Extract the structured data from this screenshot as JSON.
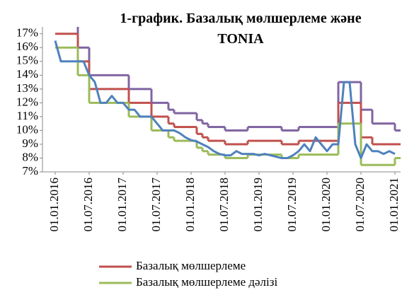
{
  "chart_data": {
    "type": "line",
    "title": "1-график. Базалық мөлшерлеме және TONIA",
    "x": [
      "01.01.2016",
      "01.02.2016",
      "01.03.2016",
      "01.04.2016",
      "01.05.2016",
      "01.06.2016",
      "01.07.2016",
      "01.08.2016",
      "01.09.2016",
      "01.10.2016",
      "01.11.2016",
      "01.12.2016",
      "01.01.2017",
      "01.02.2017",
      "01.03.2017",
      "01.04.2017",
      "01.05.2017",
      "01.06.2017",
      "01.07.2017",
      "01.08.2017",
      "01.09.2017",
      "01.10.2017",
      "01.11.2017",
      "01.12.2017",
      "01.01.2018",
      "01.02.2018",
      "01.03.2018",
      "01.04.2018",
      "01.05.2018",
      "01.06.2018",
      "01.07.2018",
      "01.08.2018",
      "01.09.2018",
      "01.10.2018",
      "01.11.2018",
      "01.12.2018",
      "01.01.2019",
      "01.02.2019",
      "01.03.2019",
      "01.04.2019",
      "01.05.2019",
      "01.06.2019",
      "01.07.2019",
      "01.08.2019",
      "01.09.2019",
      "01.10.2019",
      "01.11.2019",
      "01.12.2019",
      "01.01.2020",
      "01.02.2020",
      "01.03.2020",
      "01.04.2020",
      "01.05.2020",
      "01.06.2020",
      "01.07.2020",
      "01.08.2020",
      "01.09.2020",
      "01.10.2020",
      "01.11.2020",
      "01.12.2020",
      "01.01.2021"
    ],
    "series": [
      {
        "color": "#8064a2",
        "step": true,
        "values": [
          18,
          18,
          18,
          18,
          16,
          16,
          14,
          14,
          14,
          14,
          14,
          14,
          14,
          13,
          13,
          13,
          13,
          12,
          12,
          12,
          11.5,
          11.25,
          11.25,
          11.25,
          11.25,
          10.75,
          10.5,
          10.25,
          10.25,
          10.25,
          10,
          10,
          10,
          10,
          10.25,
          10.25,
          10.25,
          10.25,
          10.25,
          10.25,
          10,
          10,
          10,
          10.25,
          10.25,
          10.25,
          10.25,
          10.25,
          10.25,
          10.25,
          13.5,
          13.5,
          13.5,
          13.5,
          11.5,
          11.5,
          10.5,
          10.5,
          10.5,
          10.5,
          10
        ]
      },
      {
        "name": "Базалық мөлшерлеме",
        "color": "#c0504d",
        "step": true,
        "values": [
          17,
          17,
          17,
          17,
          15,
          15,
          13,
          13,
          13,
          13,
          13,
          13,
          13,
          12,
          12,
          12,
          12,
          11,
          11,
          11,
          10.5,
          10.25,
          10.25,
          10.25,
          10.25,
          9.75,
          9.5,
          9.25,
          9.25,
          9.25,
          9,
          9,
          9,
          9,
          9.25,
          9.25,
          9.25,
          9.25,
          9.25,
          9.25,
          9,
          9,
          9,
          9.25,
          9.25,
          9.25,
          9.25,
          9.25,
          9.25,
          9.25,
          12,
          12,
          12,
          12,
          9.5,
          9.5,
          9,
          9,
          9,
          9,
          9
        ]
      },
      {
        "name": "Базалық мөлшерлеме дәлізі",
        "color": "#9bbb59",
        "step": true,
        "values": [
          16,
          16,
          16,
          16,
          14,
          14,
          12,
          12,
          12,
          12,
          12,
          12,
          12,
          11,
          11,
          11,
          11,
          10,
          10,
          10,
          9.5,
          9.25,
          9.25,
          9.25,
          9.25,
          8.75,
          8.5,
          8.25,
          8.25,
          8.25,
          8,
          8,
          8,
          8,
          8.25,
          8.25,
          8.25,
          8.25,
          8.25,
          8.25,
          8,
          8,
          8,
          8.25,
          8.25,
          8.25,
          8.25,
          8.25,
          8.25,
          8.25,
          10.5,
          10.5,
          10.5,
          10.5,
          7.5,
          7.5,
          7.5,
          7.5,
          7.5,
          7.5,
          8
        ]
      },
      {
        "color": "#4f81bd",
        "step": false,
        "values": [
          16.5,
          15,
          15,
          15,
          15,
          15,
          14,
          13.5,
          12,
          12,
          12.5,
          12,
          12,
          11.5,
          11.5,
          11,
          11,
          11,
          10.5,
          10,
          10,
          10,
          9.8,
          9.5,
          9.3,
          9.2,
          9,
          8.8,
          8.5,
          8.3,
          8.2,
          8.2,
          8.5,
          8.3,
          8.3,
          8.3,
          8.2,
          8.3,
          8.2,
          8.1,
          8,
          8,
          8.2,
          8.5,
          9,
          8.5,
          9.5,
          9,
          8.5,
          9,
          9,
          13.5,
          13.5,
          9,
          8,
          9,
          8.5,
          8.5,
          8.3,
          8.5,
          8.3
        ]
      }
    ],
    "xlim": [
      "01.11.2015",
      "01.02.2021"
    ],
    "xticks": [
      "01.01.2016",
      "01.07.2016",
      "01.01.2017",
      "01.07.2017",
      "01.01.2018",
      "01.07.2018",
      "01.01.2019",
      "01.07.2019",
      "01.01.2020",
      "01.07.2020",
      "01.01.2021"
    ],
    "ylim": [
      7,
      17.5
    ],
    "yticks": [
      {
        "value": 7,
        "label": "7%"
      },
      {
        "value": 8,
        "label": "8%"
      },
      {
        "value": 9,
        "label": "9%"
      },
      {
        "value": 10,
        "label": "10%"
      },
      {
        "value": 11,
        "label": "11%"
      },
      {
        "value": 12,
        "label": "12%"
      },
      {
        "value": 13,
        "label": "13%"
      },
      {
        "value": 14,
        "label": "14%"
      },
      {
        "value": 15,
        "label": "15%"
      },
      {
        "value": 16,
        "label": "16%"
      },
      {
        "value": 17,
        "label": "17%"
      }
    ]
  }
}
